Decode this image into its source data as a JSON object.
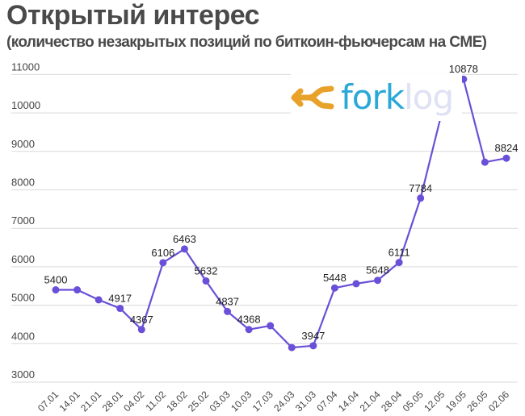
{
  "header": {
    "title": "Открытый интерес",
    "subtitle": "(количество незакрытых позиций по биткоин-фьючерсам на CME)"
  },
  "logo": {
    "icon": "merge-arrows-icon",
    "text_primary": "fork",
    "text_secondary": "log",
    "colors": {
      "icon": "#e8a22a",
      "primary": "#2aa8d8",
      "secondary": "#dfe1f4"
    }
  },
  "colors": {
    "line": "#6a4fd8",
    "grid": "#d9d9d9",
    "text": "#444444"
  },
  "chart_data": {
    "type": "line",
    "title": "Открытый интерес",
    "subtitle": "(количество незакрытых позиций по биткоин-фьючерсам на CME)",
    "xlabel": "",
    "ylabel": "",
    "ylim": [
      3000,
      11000
    ],
    "yticks": [
      3000,
      4000,
      5000,
      6000,
      7000,
      8000,
      9000,
      10000,
      11000
    ],
    "grid": true,
    "legend": "none",
    "categories": [
      "07.01",
      "14.01",
      "21.01",
      "28.01",
      "04.02",
      "11.02",
      "18.02",
      "25.02",
      "03.03",
      "10.03",
      "17.03",
      "24.03",
      "31.03",
      "07.04",
      "14.04",
      "21.04",
      "28.04",
      "05.05",
      "12.05",
      "19.05",
      "26.05",
      "02.06"
    ],
    "series": [
      {
        "name": "Открытый интерес",
        "values": [
          5400,
          5400,
          5140,
          4917,
          4367,
          6106,
          6463,
          5632,
          4837,
          4368,
          4467,
          3900,
          3947,
          5448,
          5560,
          5648,
          6111,
          7784,
          10030,
          10878,
          8720,
          8824
        ],
        "labels": [
          "5400",
          "",
          "",
          "4917",
          "4367",
          "6106",
          "6463",
          "5632",
          "4837",
          "4368",
          "",
          "",
          "3947",
          "5448",
          "",
          "5648",
          "6111",
          "7784",
          "",
          "10878",
          "",
          "8824"
        ]
      }
    ]
  }
}
